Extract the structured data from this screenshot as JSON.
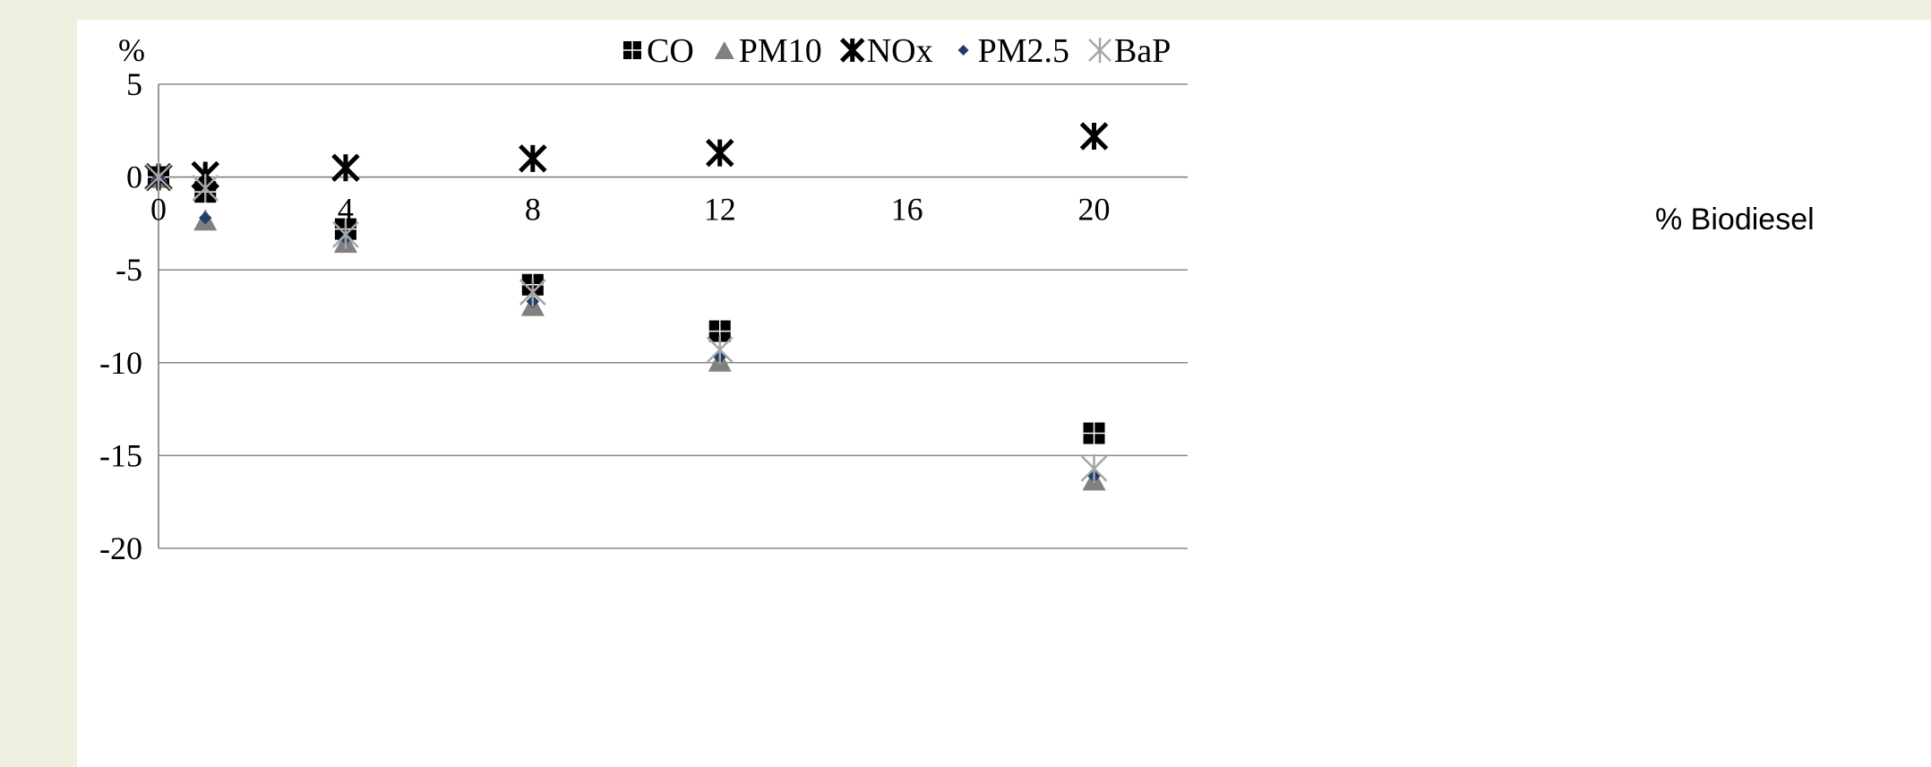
{
  "chart_data": {
    "type": "scatter",
    "title": "",
    "ylabel": "%",
    "xlabel": "% Biodiesel",
    "xlim": [
      0,
      22
    ],
    "ylim": [
      -20,
      5
    ],
    "x_ticks": [
      "0",
      "4",
      "8",
      "12",
      "16",
      "20"
    ],
    "y_ticks": [
      "5",
      "0",
      "-5",
      "-10",
      "-15",
      "-20"
    ],
    "grid": "horizontal",
    "legend_position": "top",
    "series": [
      {
        "name": "CO",
        "marker": "square",
        "color": "#000000",
        "points": [
          [
            0,
            0
          ],
          [
            1,
            -0.8
          ],
          [
            4,
            -2.8
          ],
          [
            8,
            -5.8
          ],
          [
            12,
            -8.3
          ],
          [
            20,
            -13.8
          ]
        ]
      },
      {
        "name": "PM10",
        "marker": "triangle",
        "color": "#808080",
        "points": [
          [
            0,
            0
          ],
          [
            1,
            -2.3
          ],
          [
            4,
            -3.5
          ],
          [
            8,
            -6.9
          ],
          [
            12,
            -9.9
          ],
          [
            20,
            -16.3
          ]
        ]
      },
      {
        "name": "NOx",
        "marker": "asterisk",
        "color": "#000000",
        "points": [
          [
            0,
            0
          ],
          [
            1,
            0.1
          ],
          [
            4,
            0.5
          ],
          [
            8,
            1.0
          ],
          [
            12,
            1.3
          ],
          [
            20,
            2.2
          ]
        ]
      },
      {
        "name": "PM2.5",
        "marker": "diamond",
        "color": "#1f3f6a",
        "points": [
          [
            0,
            0
          ],
          [
            1,
            -2.2
          ],
          [
            4,
            -3.3
          ],
          [
            8,
            -6.7
          ],
          [
            12,
            -9.7
          ],
          [
            20,
            -16.1
          ]
        ]
      },
      {
        "name": "BaP",
        "marker": "star",
        "color": "#a6a6a6",
        "points": [
          [
            0,
            0
          ],
          [
            1,
            -0.6
          ],
          [
            4,
            -3.1
          ],
          [
            8,
            -6.2
          ],
          [
            12,
            -9.3
          ],
          [
            20,
            -15.7
          ]
        ]
      }
    ]
  }
}
